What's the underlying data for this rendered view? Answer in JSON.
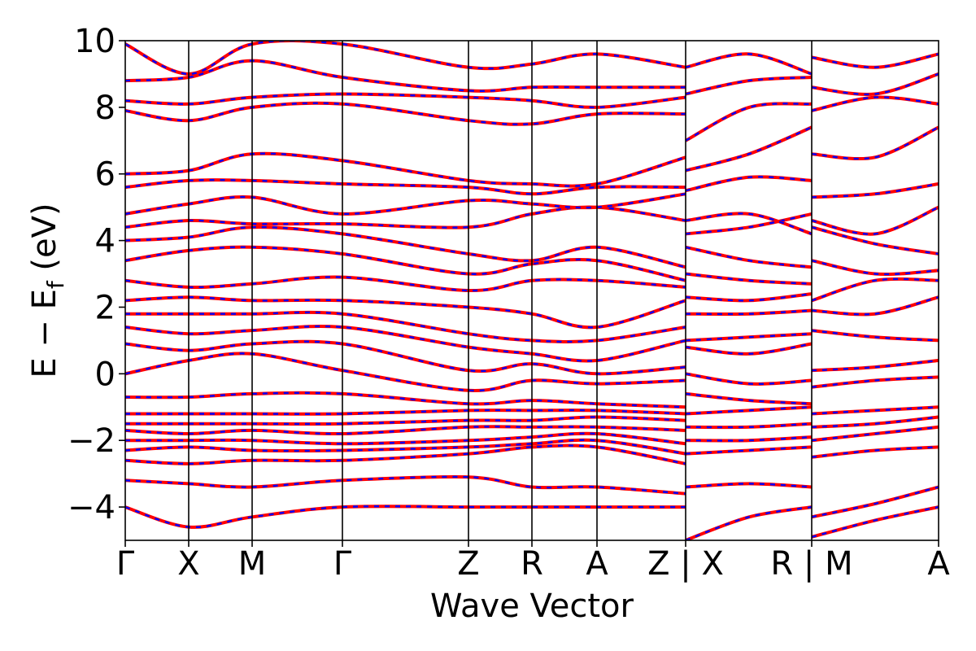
{
  "chart_data": {
    "type": "line",
    "xlabel": "Wave Vector",
    "ylabel_main": "E − E",
    "ylabel_sub": "f",
    "ylabel_unit": " (eV)",
    "ylim": [
      -5,
      10
    ],
    "yticks": [
      -4,
      -2,
      0,
      2,
      4,
      6,
      8,
      10
    ],
    "ytick_labels": [
      "−4",
      "−2",
      "0",
      "2",
      "4",
      "6",
      "8",
      "10"
    ],
    "xlim": [
      0,
      1
    ],
    "kpoint_positions": [
      0,
      0.078,
      0.156,
      0.267,
      0.422,
      0.5,
      0.58,
      0.689,
      0.844,
      1.0
    ],
    "kpoint_labels": [
      "Γ",
      "X",
      "M",
      "Γ",
      "Z",
      "R",
      "A",
      "Z | X",
      "R | M",
      "A"
    ],
    "grid": false,
    "series_colors": [
      "#ff0000",
      "#0000ff"
    ],
    "series_styles": [
      "solid",
      "dashed"
    ],
    "segments": [
      {
        "x": [
          0,
          0.078,
          0.156,
          0.267,
          0.422,
          0.5,
          0.58,
          0.689
        ],
        "bands": [
          [
            -4.0,
            -4.6,
            -4.3,
            -4.0,
            -4.0,
            -4.0,
            -4.0,
            -4.0
          ],
          [
            -3.2,
            -3.3,
            -3.4,
            -3.2,
            -3.1,
            -3.4,
            -3.4,
            -3.6
          ],
          [
            -2.6,
            -2.7,
            -2.6,
            -2.6,
            -2.4,
            -2.2,
            -2.2,
            -2.7
          ],
          [
            -2.3,
            -2.2,
            -2.3,
            -2.3,
            -2.2,
            -2.1,
            -2.0,
            -2.4
          ],
          [
            -2.0,
            -2.0,
            -2.0,
            -2.1,
            -2.0,
            -1.9,
            -1.8,
            -2.1
          ],
          [
            -1.7,
            -1.8,
            -1.7,
            -1.8,
            -1.6,
            -1.6,
            -1.6,
            -1.7
          ],
          [
            -1.5,
            -1.5,
            -1.5,
            -1.5,
            -1.4,
            -1.4,
            -1.3,
            -1.4
          ],
          [
            -1.2,
            -1.2,
            -1.2,
            -1.2,
            -1.1,
            -1.1,
            -1.1,
            -1.2
          ],
          [
            -0.7,
            -0.7,
            -0.6,
            -0.6,
            -0.9,
            -0.8,
            -0.9,
            -1.0
          ],
          [
            0.0,
            0.4,
            0.6,
            0.1,
            -0.5,
            -0.2,
            -0.3,
            -0.2
          ],
          [
            0.9,
            0.7,
            0.9,
            0.9,
            0.1,
            0.3,
            0.0,
            0.2
          ],
          [
            1.4,
            1.2,
            1.3,
            1.4,
            0.8,
            0.6,
            0.4,
            1.0
          ],
          [
            1.8,
            1.8,
            1.8,
            1.8,
            1.2,
            1.0,
            1.0,
            1.4
          ],
          [
            2.2,
            2.3,
            2.2,
            2.2,
            2.0,
            1.8,
            1.4,
            2.2
          ],
          [
            2.8,
            2.6,
            2.7,
            2.9,
            2.5,
            2.8,
            2.8,
            2.6
          ],
          [
            3.4,
            3.7,
            3.8,
            3.6,
            3.0,
            3.3,
            3.4,
            2.8
          ],
          [
            4.0,
            4.1,
            4.4,
            4.2,
            3.6,
            3.4,
            3.8,
            3.2
          ],
          [
            4.4,
            4.6,
            4.5,
            4.5,
            4.4,
            4.8,
            5.0,
            4.6
          ],
          [
            4.8,
            5.1,
            5.3,
            4.8,
            5.2,
            5.1,
            5.0,
            5.4
          ],
          [
            5.6,
            5.8,
            5.8,
            5.7,
            5.6,
            5.4,
            5.6,
            5.6
          ],
          [
            6.0,
            6.1,
            6.6,
            6.4,
            5.8,
            5.7,
            5.7,
            6.5
          ],
          [
            7.9,
            7.6,
            8.0,
            8.1,
            7.6,
            7.5,
            7.8,
            7.8
          ],
          [
            8.2,
            8.1,
            8.3,
            8.4,
            8.3,
            8.2,
            8.0,
            8.3
          ],
          [
            8.8,
            8.9,
            9.4,
            8.9,
            8.5,
            8.6,
            8.6,
            8.6
          ],
          [
            9.9,
            9.0,
            9.9,
            9.9,
            9.2,
            9.3,
            9.6,
            9.2
          ]
        ]
      },
      {
        "x": [
          0.689,
          0.767,
          0.844
        ],
        "bands": [
          [
            -5.0,
            -4.3,
            -4.0
          ],
          [
            -3.4,
            -3.3,
            -3.4
          ],
          [
            -2.4,
            -2.3,
            -2.2
          ],
          [
            -2.0,
            -2.0,
            -1.9
          ],
          [
            -1.6,
            -1.6,
            -1.5
          ],
          [
            -1.2,
            -1.1,
            -1.0
          ],
          [
            -0.6,
            -0.8,
            -0.9
          ],
          [
            0.0,
            -0.3,
            -0.2
          ],
          [
            0.8,
            0.6,
            0.9
          ],
          [
            1.0,
            1.1,
            1.2
          ],
          [
            1.8,
            1.8,
            1.9
          ],
          [
            2.3,
            2.2,
            2.4
          ],
          [
            3.0,
            2.8,
            2.7
          ],
          [
            3.8,
            3.4,
            3.2
          ],
          [
            4.2,
            4.4,
            4.8
          ],
          [
            4.6,
            4.8,
            4.2
          ],
          [
            5.5,
            5.9,
            5.8
          ],
          [
            6.1,
            6.6,
            7.4
          ],
          [
            7.0,
            8.0,
            8.1
          ],
          [
            8.4,
            8.8,
            8.9
          ],
          [
            9.2,
            9.6,
            9.0
          ]
        ]
      },
      {
        "x": [
          0.844,
          0.922,
          1.0
        ],
        "bands": [
          [
            -4.9,
            -4.4,
            -4.0
          ],
          [
            -4.3,
            -3.9,
            -3.4
          ],
          [
            -2.5,
            -2.3,
            -2.2
          ],
          [
            -2.0,
            -1.8,
            -1.6
          ],
          [
            -1.6,
            -1.5,
            -1.3
          ],
          [
            -1.2,
            -1.1,
            -1.0
          ],
          [
            -0.4,
            -0.2,
            -0.1
          ],
          [
            0.1,
            0.2,
            0.4
          ],
          [
            1.3,
            1.1,
            1.0
          ],
          [
            1.9,
            1.8,
            2.3
          ],
          [
            2.2,
            2.8,
            2.8
          ],
          [
            3.4,
            3.0,
            3.1
          ],
          [
            4.4,
            3.9,
            3.6
          ],
          [
            4.6,
            4.2,
            5.0
          ],
          [
            5.3,
            5.4,
            5.7
          ],
          [
            6.6,
            6.5,
            7.4
          ],
          [
            7.9,
            8.3,
            8.1
          ],
          [
            8.6,
            8.4,
            9.0
          ],
          [
            9.5,
            9.2,
            9.6
          ]
        ]
      }
    ]
  }
}
